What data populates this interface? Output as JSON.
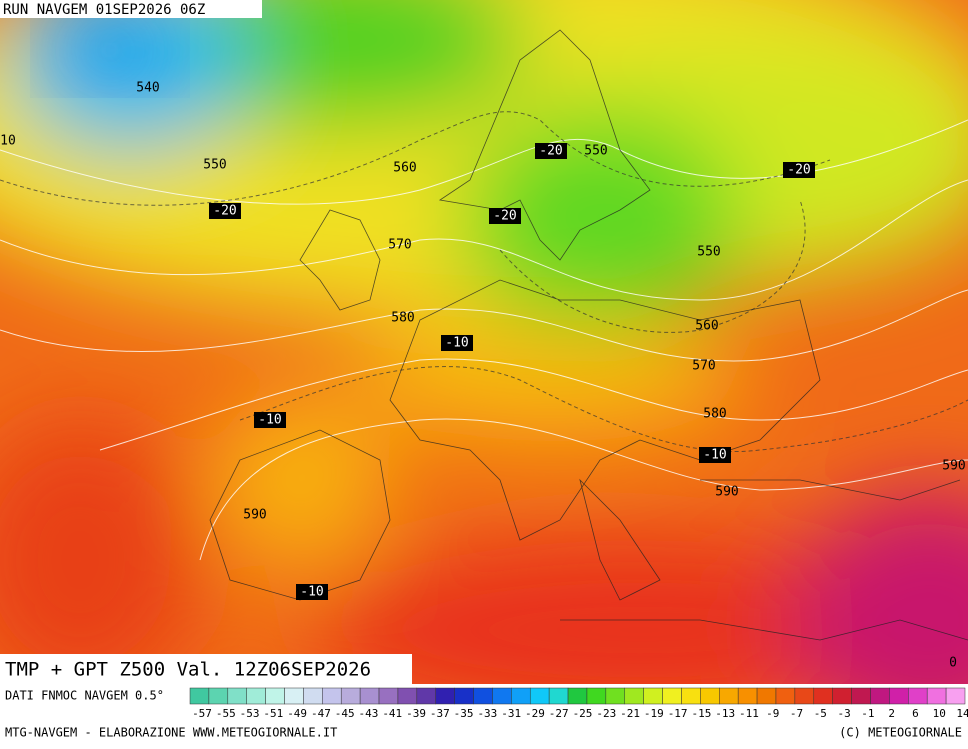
{
  "header": {
    "title": "RUN NAVGEM 01SEP2026 06Z"
  },
  "map": {
    "caption": "TMP + GPT Z500 Val. 12Z06SEP2026",
    "contour_labels": [
      540,
      10,
      550,
      -20,
      560,
      -20,
      550,
      -20,
      -20,
      570,
      550,
      580,
      -10,
      560,
      570,
      -10,
      580,
      -10,
      590,
      590,
      590,
      -10,
      0
    ]
  },
  "legend": {
    "source": "DATI FNMOC NAVGEM 0.5°",
    "colors": [
      "#40c8a0",
      "#5cd4b0",
      "#80e0c8",
      "#a0ecd8",
      "#c0f4e8",
      "#d8f0f4",
      "#d0dcf0",
      "#c4c4ec",
      "#b8acdc",
      "#a890d0",
      "#9870c0",
      "#8050b0",
      "#6038a8",
      "#3020b0",
      "#1830c8",
      "#1050e0",
      "#1078f0",
      "#10a0f8",
      "#10c8f8",
      "#20d8d0",
      "#20c840",
      "#40d820",
      "#70e020",
      "#a0e820",
      "#d0f020",
      "#f0f020",
      "#f8e010",
      "#f8c800",
      "#f8a800",
      "#f89000",
      "#f07800",
      "#f06010",
      "#e84818",
      "#e03020",
      "#d02030",
      "#c01850",
      "#c01880",
      "#d020a8",
      "#e040c8",
      "#f070e0",
      "#f8a0f0"
    ],
    "ticks": [
      -57,
      -55,
      -53,
      -51,
      -49,
      -47,
      -45,
      -43,
      -41,
      -39,
      -37,
      -35,
      -33,
      -31,
      -29,
      -27,
      -25,
      -23,
      -21,
      -19,
      -17,
      -15,
      -13,
      -11,
      -9,
      -7,
      -5,
      -3,
      -1,
      2,
      6,
      10,
      14
    ]
  },
  "footer": {
    "left": "MTG-NAVGEM - ELABORAZIONE WWW.METEOGIORNALE.IT",
    "right": "(C) METEOGIORNALE"
  }
}
